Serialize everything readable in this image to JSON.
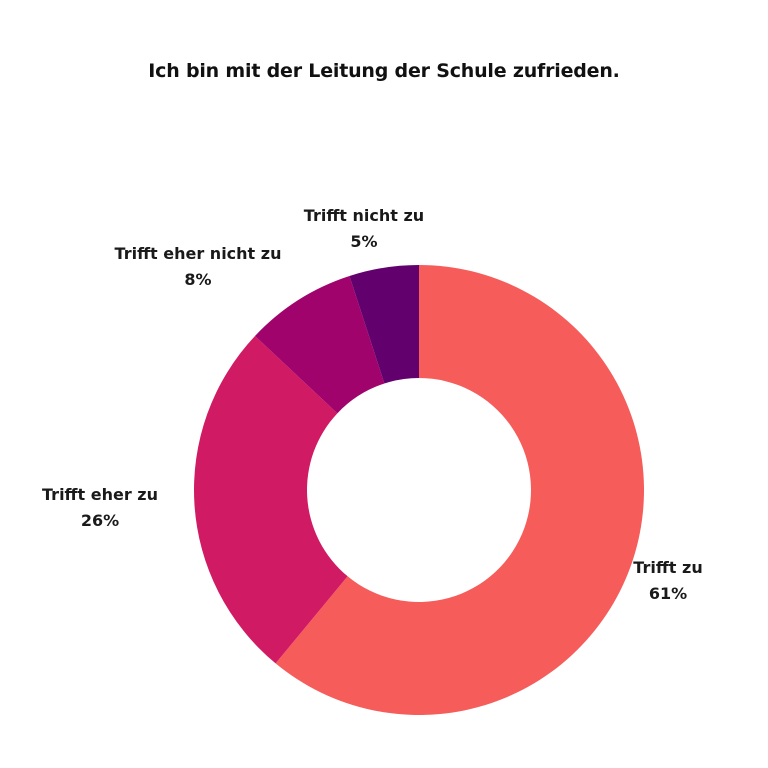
{
  "chart_data": {
    "type": "pie",
    "variant": "donut",
    "title": "Ich bin mit der Leitung der Schule zufrieden.",
    "slices": [
      {
        "label": "Trifft zu",
        "value": 61,
        "value_label": "61%",
        "color": "#F55C5A"
      },
      {
        "label": "Trifft eher zu",
        "value": 26,
        "value_label": "26%",
        "color": "#D01A63"
      },
      {
        "label": "Trifft eher nicht zu",
        "value": 8,
        "value_label": "8%",
        "color": "#A0046C"
      },
      {
        "label": "Trifft nicht zu",
        "value": 5,
        "value_label": "5%",
        "color": "#62006E"
      }
    ]
  }
}
